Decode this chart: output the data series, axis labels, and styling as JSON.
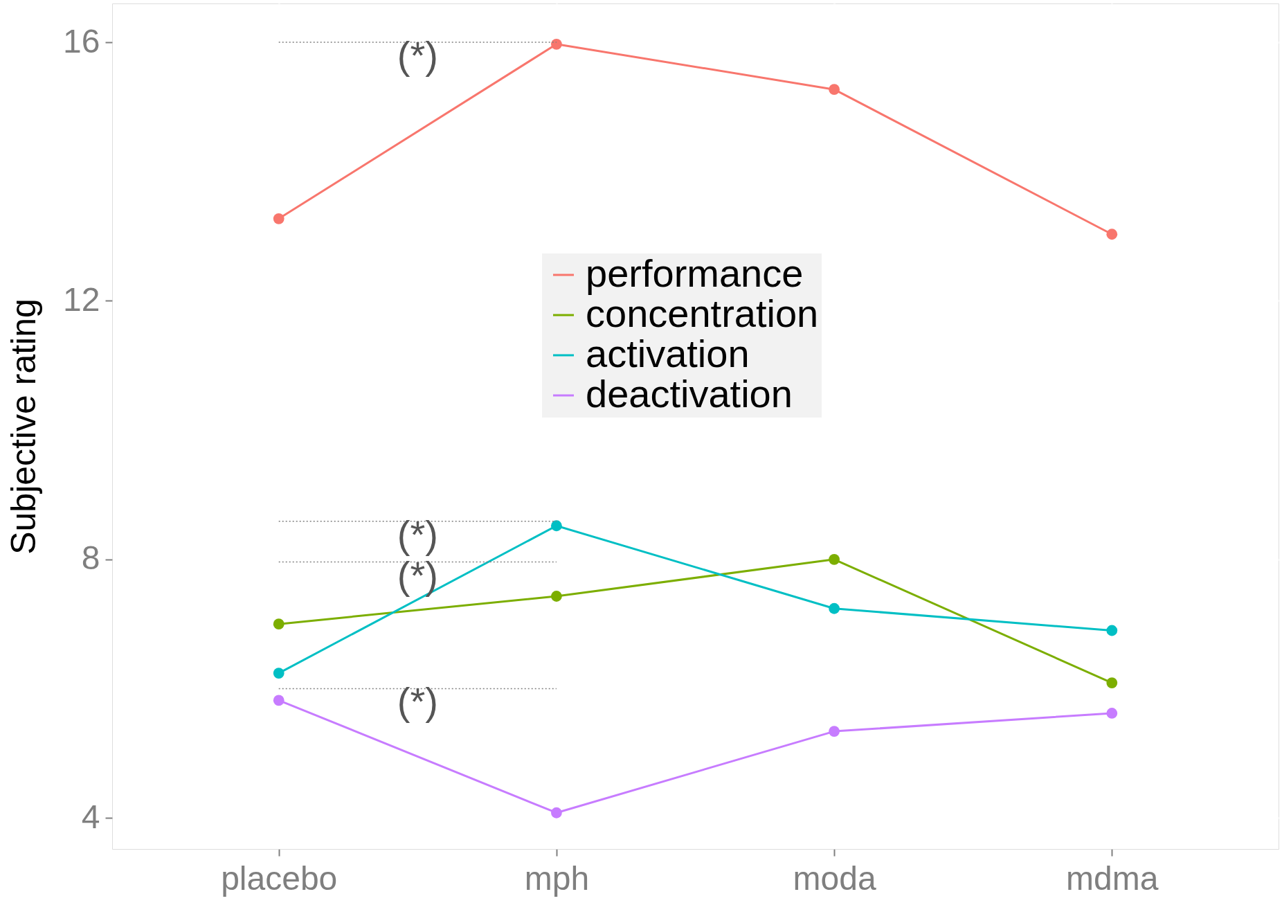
{
  "chart_data": {
    "type": "line",
    "ylabel": "Subjective rating",
    "categories": [
      "placebo",
      "mph",
      "moda",
      "mdma"
    ],
    "series": [
      {
        "name": "performance",
        "color": "#f8766d",
        "values": [
          13.27,
          15.97,
          15.27,
          13.03
        ]
      },
      {
        "name": "concentration",
        "color": "#7cae00",
        "values": [
          7.0,
          7.43,
          8.0,
          6.09
        ]
      },
      {
        "name": "activation",
        "color": "#00bfc4",
        "values": [
          6.24,
          8.52,
          7.24,
          6.9
        ]
      },
      {
        "name": "deactivation",
        "color": "#c77cff",
        "values": [
          5.82,
          4.08,
          5.34,
          5.62
        ]
      },
      {
        "color": "#7f7f7f",
        "line_style": "dotted",
        "marker": "none",
        "values": [
          16.0,
          16.0,
          null,
          null
        ]
      },
      {
        "color": "#7f7f7f",
        "line_style": "dotted",
        "marker": "none",
        "values": [
          8.59,
          8.59,
          null,
          null
        ]
      },
      {
        "color": "#7f7f7f",
        "line_style": "dotted",
        "marker": "none",
        "values": [
          7.96,
          7.96,
          null,
          null
        ]
      },
      {
        "color": "#7f7f7f",
        "line_style": "dotted",
        "marker": "none",
        "values": [
          6.0,
          6.0,
          null,
          null
        ]
      }
    ],
    "annotations": [
      {
        "text": "(*)",
        "y": 16.0
      },
      {
        "text": "(*)",
        "y": 8.59
      },
      {
        "text": "(*)",
        "y": 7.96
      },
      {
        "text": "(*)",
        "y": 6.0
      }
    ],
    "ylim": [
      3.52,
      16.6
    ],
    "yticks": [
      4,
      8,
      12,
      16
    ],
    "grid": true,
    "legend": "top",
    "marker": "circle",
    "line_style": "solid"
  }
}
